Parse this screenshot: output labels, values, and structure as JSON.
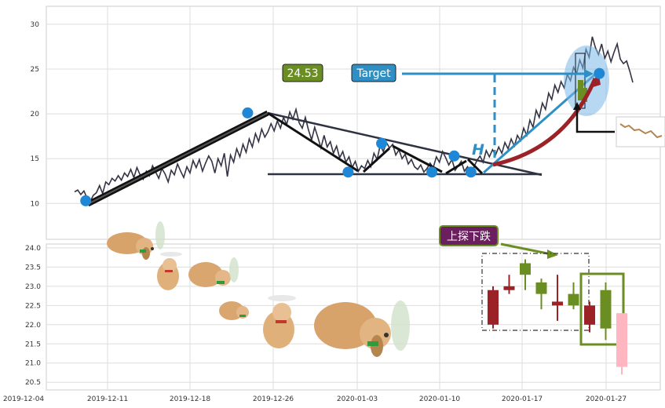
{
  "chart_data": [
    {
      "type": "line",
      "panel": "top",
      "ylim": [
        6,
        32
      ],
      "yticks": [
        10,
        15,
        20,
        25,
        30
      ],
      "grid": true,
      "series": [
        {
          "values": [
            11.3,
            11.5,
            11.0,
            11.4,
            10.6,
            10.2,
            10.9,
            11.2,
            12.0,
            11.1,
            12.4,
            12.1,
            12.8,
            12.5,
            13.1,
            12.6,
            13.4,
            13.0,
            13.8,
            12.9,
            14.0,
            13.2,
            12.7,
            13.6,
            13.1,
            14.2,
            13.5,
            12.8,
            13.9,
            13.3,
            12.4,
            13.7,
            13.2,
            14.4,
            13.6,
            12.9,
            14.1,
            13.4,
            14.8,
            14.0,
            14.9,
            13.6,
            14.5,
            15.3,
            14.7,
            13.4,
            15.0,
            14.2,
            15.6,
            13.0,
            15.4,
            14.6,
            16.1,
            15.2,
            16.6,
            15.7,
            17.2,
            16.3,
            17.8,
            16.9,
            18.3,
            17.4,
            18.0,
            18.9,
            18.1,
            19.2,
            18.4,
            19.6,
            18.8,
            20.2,
            19.4,
            20.5,
            19.0,
            18.4,
            19.6,
            18.2,
            17.1,
            18.5,
            17.4,
            16.2,
            17.6,
            16.3,
            16.9,
            15.6,
            16.4,
            15.1,
            15.8,
            14.6,
            15.2,
            14.0,
            14.7,
            13.6,
            14.2,
            13.9,
            14.8,
            14.1,
            15.6,
            14.9,
            16.5,
            15.8,
            16.8,
            16.2,
            16.6,
            15.4,
            16.0,
            15.0,
            15.5,
            14.4,
            14.9,
            14.1,
            13.8,
            14.3,
            13.5,
            13.9,
            14.5,
            14.0,
            15.2,
            14.6,
            15.8,
            15.1,
            14.3,
            14.9,
            13.7,
            14.2,
            14.7,
            13.6,
            14.1,
            13.5,
            14.0,
            14.8,
            15.3,
            14.6,
            15.9,
            15.2,
            16.0,
            15.4,
            16.3,
            15.6,
            16.8,
            16.1,
            17.2,
            16.4,
            17.6,
            17.0,
            18.4,
            17.6,
            19.3,
            18.5,
            20.4,
            19.6,
            21.2,
            20.5,
            22.3,
            21.6,
            23.2,
            22.4,
            23.6,
            22.9,
            24.4,
            23.7,
            25.2,
            24.5,
            26.0,
            25.1,
            27.2,
            26.3,
            28.6,
            27.4,
            26.6,
            27.8,
            26.2,
            27.0,
            25.8,
            26.9,
            27.8,
            26.1,
            25.6,
            25.9,
            24.8,
            23.5
          ]
        }
      ],
      "pattern_points": [
        {
          "x": 0.02,
          "y": 10.3
        },
        {
          "x": 0.31,
          "y": 20.1
        },
        {
          "x": 0.49,
          "y": 13.5
        },
        {
          "x": 0.55,
          "y": 16.7
        },
        {
          "x": 0.64,
          "y": 13.5
        },
        {
          "x": 0.68,
          "y": 15.3
        },
        {
          "x": 0.71,
          "y": 13.5
        },
        {
          "x": 0.94,
          "y": 24.5
        }
      ],
      "annotations": {
        "value_box": "24.53",
        "target_label": "Target",
        "height_label": "H"
      }
    },
    {
      "type": "candlestick",
      "panel": "bottom",
      "ylim": [
        20.3,
        24.1
      ],
      "yticks": [
        "24.0",
        "23.5",
        "23.0",
        "22.5",
        "22.0",
        "21.5",
        "21.0",
        "20.5"
      ],
      "grid": true,
      "candles": [
        {
          "open": 22.0,
          "close": 22.9,
          "high": 23.0,
          "low": 21.9,
          "color": "#9b2226"
        },
        {
          "open": 22.9,
          "close": 23.0,
          "high": 23.3,
          "low": 22.8,
          "color": "#9b2226"
        },
        {
          "open": 23.6,
          "close": 23.3,
          "high": 23.7,
          "low": 22.9,
          "color": "#6b8e23"
        },
        {
          "open": 23.1,
          "close": 22.8,
          "high": 23.2,
          "low": 22.4,
          "color": "#6b8e23"
        },
        {
          "open": 22.6,
          "close": 22.5,
          "high": 23.3,
          "low": 22.1,
          "color": "#9b2226"
        },
        {
          "open": 22.8,
          "close": 22.5,
          "high": 23.1,
          "low": 22.4,
          "color": "#6b8e23"
        },
        {
          "open": 22.5,
          "close": 22.0,
          "high": 22.6,
          "low": 21.8,
          "color": "#9b2226"
        },
        {
          "open": 22.9,
          "close": 21.9,
          "high": 23.1,
          "low": 21.6,
          "color": "#6b8e23"
        },
        {
          "open": 22.3,
          "close": 20.9,
          "high": 22.3,
          "low": 20.7,
          "color": "#ffb6c1"
        }
      ],
      "annotations": {
        "pattern_label": "上探下跌"
      }
    }
  ],
  "x_axis": {
    "tick_labels": [
      "2019-12-04",
      "2019-12-11",
      "2019-12-18",
      "2019-12-26",
      "2020-01-03",
      "2020-01-10",
      "2020-01-17",
      "2020-01-27"
    ]
  },
  "colors": {
    "price_line": "#333344",
    "marker": "#1f88d6",
    "triangle": "#2f3241",
    "target": "#2d8fc4",
    "value_box": "#6b8e23",
    "curve_arrow": "#9b2226",
    "highlight_ellipse": "#7ab8e8",
    "green_box": "#6b8e23"
  }
}
